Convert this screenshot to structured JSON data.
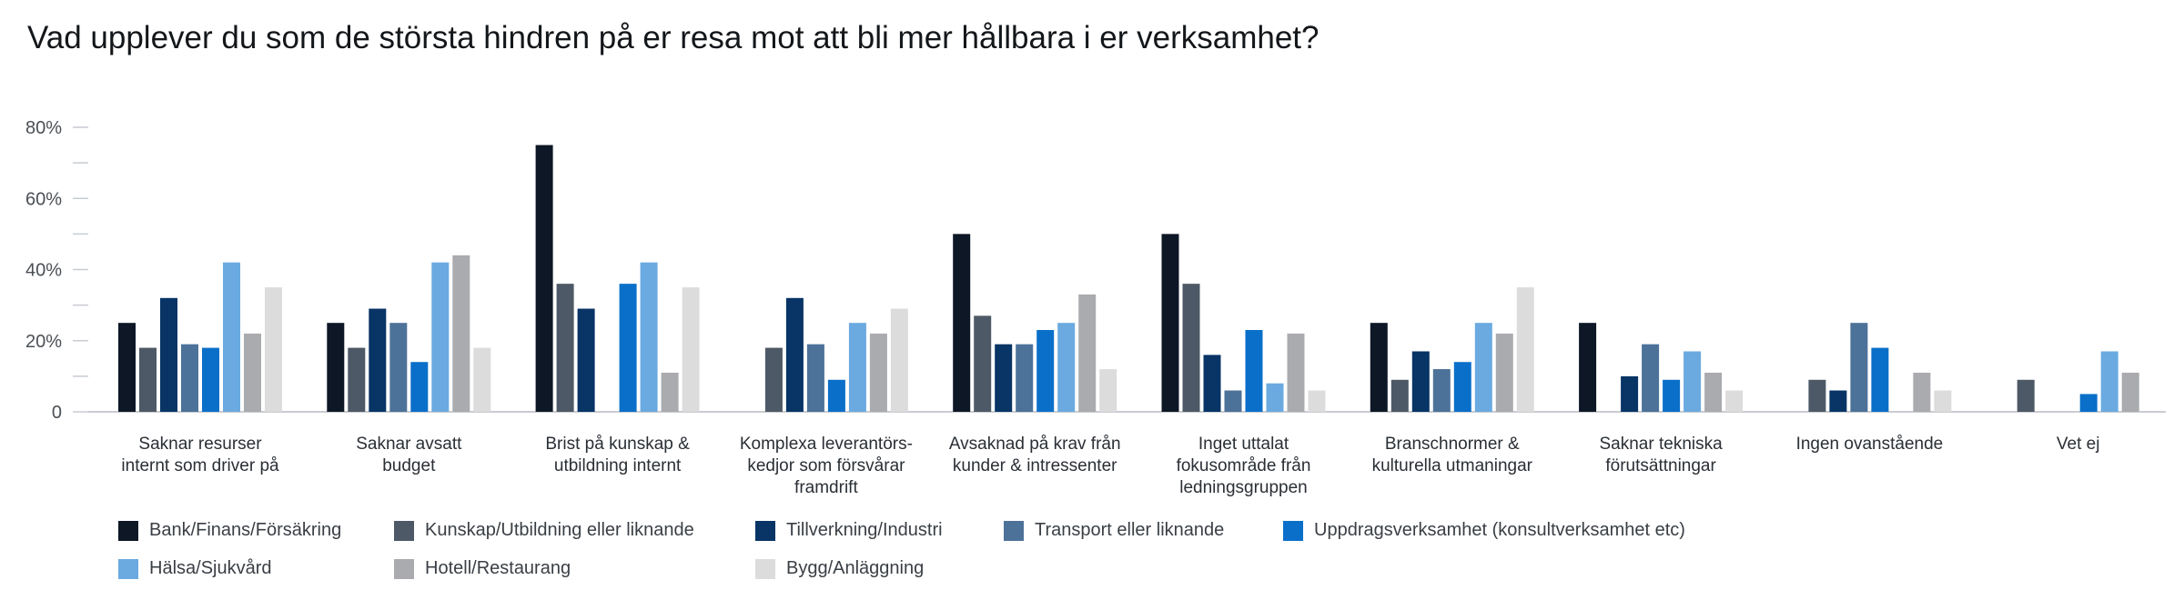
{
  "chart_data": {
    "type": "bar",
    "title": "Vad upplever du som de största hindren på er resa mot att bli mer hållbara i er verksamhet?",
    "xlabel": "",
    "ylabel": "",
    "ylim": [
      0,
      80
    ],
    "y_ticks": [
      {
        "value": 0,
        "label": "0"
      },
      {
        "value": 20,
        "label": "20%"
      },
      {
        "value": 40,
        "label": "40%"
      },
      {
        "value": 60,
        "label": "60%"
      },
      {
        "value": 80,
        "label": "80%"
      }
    ],
    "legend_position": "bottom",
    "categories": [
      [
        "Saknar resurser",
        "internt som driver på"
      ],
      [
        "Saknar avsatt",
        "budget"
      ],
      [
        "Brist på kunskap &",
        "utbildning internt"
      ],
      [
        "Komplexa leverantörs-",
        "kedjor som försvårar",
        "framdrift"
      ],
      [
        "Avsaknad på krav från",
        "kunder & intressenter"
      ],
      [
        "Inget uttalat",
        "fokusområde från",
        "ledningsgruppen"
      ],
      [
        "Branschnormer &",
        "kulturella utmaningar"
      ],
      [
        "Saknar tekniska",
        "förutsättningar"
      ],
      [
        "Ingen ovanstående"
      ],
      [
        "Vet ej"
      ]
    ],
    "series": [
      {
        "name": "Bank/Finans/Försäkring",
        "color": "#0d1726",
        "values": [
          25,
          25,
          75,
          0,
          50,
          50,
          25,
          25,
          0,
          0
        ]
      },
      {
        "name": "Kunskap/Utbildning eller liknande",
        "color": "#4d5966",
        "values": [
          18,
          18,
          36,
          18,
          27,
          36,
          9,
          0,
          9,
          9
        ]
      },
      {
        "name": "Tillverkning/Industri",
        "color": "#083466",
        "values": [
          32,
          29,
          29,
          32,
          19,
          16,
          17,
          10,
          6,
          0
        ]
      },
      {
        "name": "Transport eller liknande",
        "color": "#4d7299",
        "values": [
          19,
          25,
          0,
          19,
          19,
          6,
          12,
          19,
          25,
          0
        ]
      },
      {
        "name": "Uppdragsverksamhet (konsultverksamhet etc)",
        "color": "#0a6fc9",
        "values": [
          18,
          14,
          36,
          9,
          23,
          23,
          14,
          9,
          18,
          5
        ]
      },
      {
        "name": "Hälsa/Sjukvård",
        "color": "#6aaae0",
        "values": [
          42,
          42,
          42,
          25,
          25,
          8,
          25,
          17,
          0,
          17
        ]
      },
      {
        "name": "Hotell/Restaurang",
        "color": "#a9abae",
        "values": [
          22,
          44,
          11,
          22,
          33,
          22,
          22,
          11,
          11,
          11
        ]
      },
      {
        "name": "Bygg/Anläggning",
        "color": "#dcdcdc",
        "values": [
          35,
          18,
          35,
          29,
          12,
          6,
          35,
          6,
          6,
          0
        ]
      }
    ]
  }
}
